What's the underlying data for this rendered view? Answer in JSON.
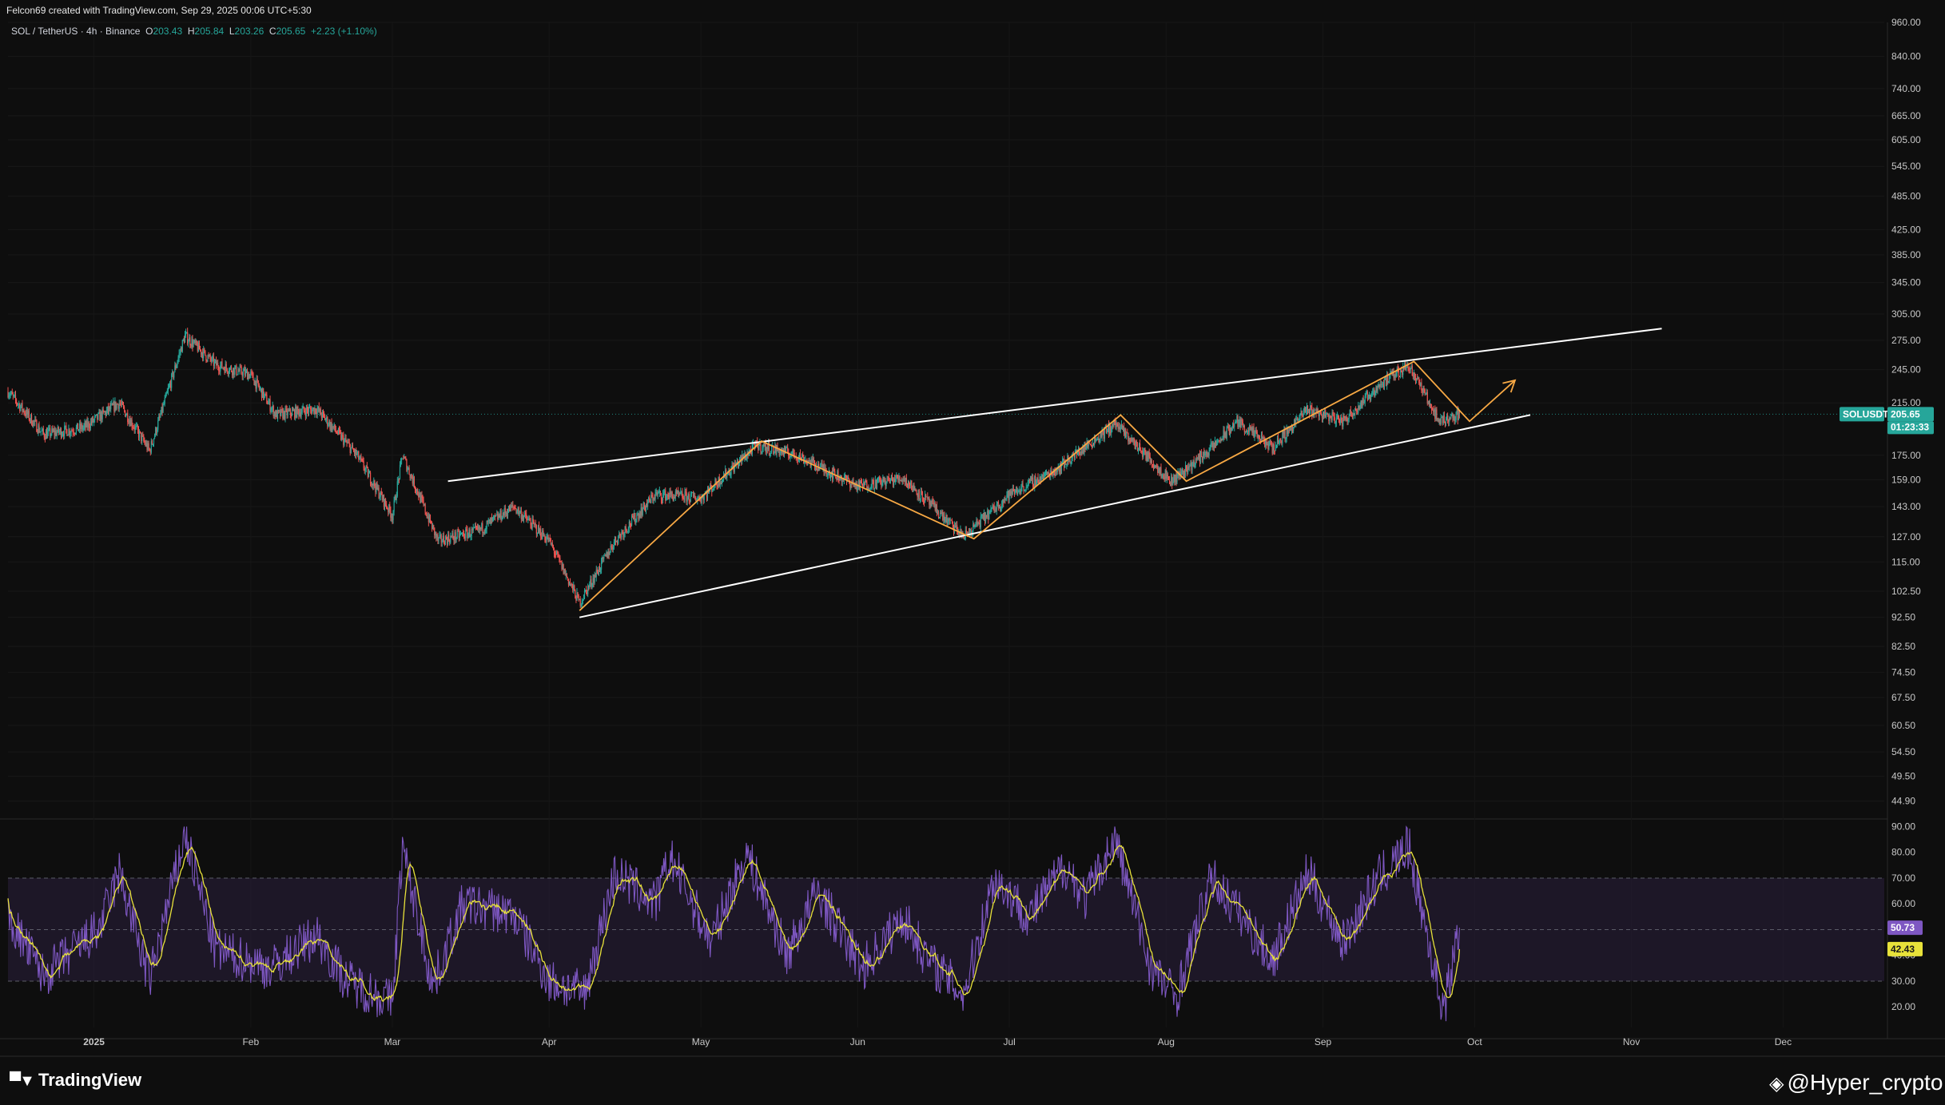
{
  "attribution": "Felcon69 created with TradingView.com, Sep 29, 2025 00:06 UTC+5:30",
  "legend": {
    "symbol": "SOL / TetherUS · 4h · Binance",
    "o_label": "O",
    "o": "203.43",
    "h_label": "H",
    "h": "205.84",
    "l_label": "L",
    "l": "203.26",
    "c_label": "C",
    "c": "205.65",
    "change": "+2.23 (+1.10%)"
  },
  "price_badge": {
    "ticker": "SOLUSDT",
    "price": "205.65",
    "countdown": "01:23:33"
  },
  "rsi_badges": {
    "rsi": "50.73",
    "ma": "42.43"
  },
  "footer": {
    "brand": "TradingView",
    "watermark": "@Hyper_crypto"
  },
  "colors": {
    "background": "#0e0e0e",
    "up": "#26a69a",
    "down": "#ef5350",
    "channel": "#ffffff",
    "zigzag": "#f7a844",
    "rsi": "#7e57c2",
    "rsi_ma": "#e8e23a",
    "rsi_band": "#2a1f3d",
    "price_line": "#26a69a"
  },
  "icons": {
    "brand": "tradingview-logo-icon",
    "watermark": "binance-diamond-icon"
  },
  "chart_data": [
    {
      "type": "candlestick",
      "symbol": "SOL / TetherUS",
      "interval": "4h",
      "exchange": "Binance",
      "x_range": [
        "2024-12-15",
        "2025-12-21"
      ],
      "y_scale": "log",
      "y_range": [
        42,
        960
      ],
      "y_ticks": [
        "960.00",
        "840.00",
        "740.00",
        "665.00",
        "605.00",
        "545.00",
        "485.00",
        "425.00",
        "385.00",
        "345.00",
        "305.00",
        "275.00",
        "245.00",
        "215.00",
        "175.00",
        "159.00",
        "143.00",
        "127.00",
        "115.00",
        "102.50",
        "92.50",
        "82.50",
        "74.50",
        "67.50",
        "60.50",
        "54.50",
        "49.50",
        "44.90"
      ],
      "x_ticks": [
        "2025",
        "Feb",
        "Mar",
        "Apr",
        "May",
        "Jun",
        "Jul",
        "Aug",
        "Sep",
        "Oct",
        "Nov",
        "Dec"
      ],
      "x_tick_dates": [
        "2025-01-01",
        "2025-02-01",
        "2025-03-01",
        "2025-04-01",
        "2025-05-01",
        "2025-06-01",
        "2025-07-01",
        "2025-08-01",
        "2025-09-01",
        "2025-10-01",
        "2025-11-01",
        "2025-12-01"
      ],
      "last_price": 205.65,
      "price_path": [
        [
          "2024-12-15",
          225
        ],
        [
          "2024-12-22",
          190
        ],
        [
          "2024-12-30",
          195
        ],
        [
          "2025-01-06",
          215
        ],
        [
          "2025-01-12",
          178
        ],
        [
          "2025-01-19",
          280
        ],
        [
          "2025-01-25",
          250
        ],
        [
          "2025-02-01",
          240
        ],
        [
          "2025-02-06",
          205
        ],
        [
          "2025-02-14",
          210
        ],
        [
          "2025-02-22",
          175
        ],
        [
          "2025-03-01",
          138
        ],
        [
          "2025-03-03",
          175
        ],
        [
          "2025-03-10",
          125
        ],
        [
          "2025-03-18",
          130
        ],
        [
          "2025-03-25",
          143
        ],
        [
          "2025-04-01",
          125
        ],
        [
          "2025-04-07",
          98
        ],
        [
          "2025-04-14",
          125
        ],
        [
          "2025-04-22",
          150
        ],
        [
          "2025-05-01",
          148
        ],
        [
          "2025-05-12",
          182
        ],
        [
          "2025-05-20",
          175
        ],
        [
          "2025-06-01",
          155
        ],
        [
          "2025-06-10",
          160
        ],
        [
          "2025-06-22",
          127
        ],
        [
          "2025-07-01",
          150
        ],
        [
          "2025-07-10",
          165
        ],
        [
          "2025-07-22",
          198
        ],
        [
          "2025-08-02",
          158
        ],
        [
          "2025-08-10",
          180
        ],
        [
          "2025-08-15",
          200
        ],
        [
          "2025-08-22",
          180
        ],
        [
          "2025-08-29",
          210
        ],
        [
          "2025-09-05",
          200
        ],
        [
          "2025-09-12",
          230
        ],
        [
          "2025-09-18",
          250
        ],
        [
          "2025-09-24",
          200
        ],
        [
          "2025-09-28",
          205.65
        ]
      ],
      "channel": {
        "upper": [
          [
            "2025-03-12",
            158
          ],
          [
            "2025-11-07",
            288
          ]
        ],
        "lower": [
          [
            "2025-04-07",
            92.5
          ],
          [
            "2025-10-12",
            205
          ]
        ]
      },
      "zigzag": [
        [
          "2025-04-07",
          95
        ],
        [
          "2025-05-13",
          185
        ],
        [
          "2025-06-24",
          126
        ],
        [
          "2025-07-23",
          205
        ],
        [
          "2025-08-05",
          158
        ],
        [
          "2025-09-19",
          253
        ],
        [
          "2025-09-30",
          200
        ],
        [
          "2025-10-09",
          235
        ]
      ]
    },
    {
      "type": "line",
      "indicator": "RSI",
      "y_range": [
        12,
        92
      ],
      "y_ticks": [
        "90.00",
        "80.00",
        "70.00",
        "60.00",
        "50.00",
        "40.00",
        "30.00",
        "20.00"
      ],
      "overbought": 70,
      "midline": 50,
      "oversold": 30,
      "rsi_last": 50.73,
      "ma_last": 42.43,
      "rsi_path": [
        [
          "2024-12-15",
          55
        ],
        [
          "2024-12-22",
          32
        ],
        [
          "2025-01-02",
          50
        ],
        [
          "2025-01-06",
          72
        ],
        [
          "2025-01-12",
          30
        ],
        [
          "2025-01-19",
          87
        ],
        [
          "2025-01-25",
          42
        ],
        [
          "2025-02-05",
          35
        ],
        [
          "2025-02-14",
          48
        ],
        [
          "2025-02-20",
          30
        ],
        [
          "2025-03-01",
          22
        ],
        [
          "2025-03-03",
          82
        ],
        [
          "2025-03-09",
          28
        ],
        [
          "2025-03-15",
          60
        ],
        [
          "2025-03-25",
          56
        ],
        [
          "2025-04-01",
          30
        ],
        [
          "2025-04-08",
          25
        ],
        [
          "2025-04-14",
          72
        ],
        [
          "2025-04-22",
          60
        ],
        [
          "2025-04-25",
          78
        ],
        [
          "2025-05-03",
          45
        ],
        [
          "2025-05-10",
          80
        ],
        [
          "2025-05-18",
          40
        ],
        [
          "2025-05-24",
          65
        ],
        [
          "2025-06-02",
          35
        ],
        [
          "2025-06-10",
          55
        ],
        [
          "2025-06-15",
          38
        ],
        [
          "2025-06-22",
          25
        ],
        [
          "2025-06-28",
          70
        ],
        [
          "2025-07-05",
          55
        ],
        [
          "2025-07-12",
          75
        ],
        [
          "2025-07-16",
          62
        ],
        [
          "2025-07-22",
          85
        ],
        [
          "2025-07-29",
          35
        ],
        [
          "2025-08-03",
          24
        ],
        [
          "2025-08-10",
          70
        ],
        [
          "2025-08-16",
          55
        ],
        [
          "2025-08-22",
          38
        ],
        [
          "2025-08-29",
          72
        ],
        [
          "2025-09-05",
          45
        ],
        [
          "2025-09-12",
          70
        ],
        [
          "2025-09-18",
          82
        ],
        [
          "2025-09-24",
          25
        ],
        [
          "2025-09-25",
          20
        ],
        [
          "2025-09-28",
          50.73
        ]
      ]
    }
  ]
}
